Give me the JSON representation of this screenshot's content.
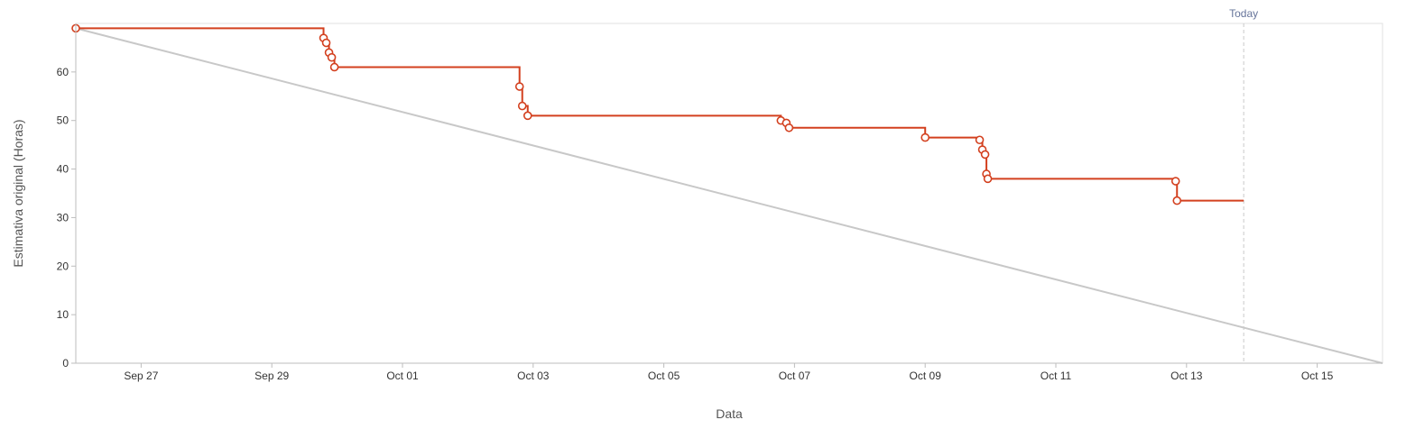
{
  "chart_data": {
    "type": "line",
    "xlabel": "Data",
    "ylabel": "Estimativa original (Horas)",
    "x_axis": {
      "type": "date",
      "range": [
        "2025-09-26",
        "2025-10-16"
      ],
      "ticks": [
        {
          "date": "2025-09-27",
          "label": "Sep 27"
        },
        {
          "date": "2025-09-29",
          "label": "Sep 29"
        },
        {
          "date": "2025-10-01",
          "label": "Oct 01"
        },
        {
          "date": "2025-10-03",
          "label": "Oct 03"
        },
        {
          "date": "2025-10-05",
          "label": "Oct 05"
        },
        {
          "date": "2025-10-07",
          "label": "Oct 07"
        },
        {
          "date": "2025-10-09",
          "label": "Oct 09"
        },
        {
          "date": "2025-10-11",
          "label": "Oct 11"
        },
        {
          "date": "2025-10-13",
          "label": "Oct 13"
        },
        {
          "date": "2025-10-15",
          "label": "Oct 15"
        }
      ]
    },
    "y_axis": {
      "range": [
        0,
        70
      ],
      "ticks": [
        0,
        10,
        20,
        30,
        40,
        50,
        60
      ]
    },
    "grid": false,
    "marker": {
      "date": "2025-10-13T21:00",
      "label": "Today"
    },
    "series": [
      {
        "role": "guideline",
        "color": "#c8c8c8",
        "points": [
          {
            "x": "2025-09-26T00:00",
            "y": 69
          },
          {
            "x": "2025-10-16T00:00",
            "y": 0
          }
        ]
      },
      {
        "role": "remaining",
        "color": "#d3401f",
        "line_end": {
          "x": "2025-10-13T21:00",
          "y": 33.5
        },
        "points": [
          {
            "x": "2025-09-26T00:00",
            "y": 69
          },
          {
            "x": "2025-09-29T19:00",
            "y": 67
          },
          {
            "x": "2025-09-29T20:00",
            "y": 66
          },
          {
            "x": "2025-09-29T21:00",
            "y": 64
          },
          {
            "x": "2025-09-29T22:00",
            "y": 63
          },
          {
            "x": "2025-09-29T23:00",
            "y": 61
          },
          {
            "x": "2025-10-02T19:00",
            "y": 57
          },
          {
            "x": "2025-10-02T20:00",
            "y": 53
          },
          {
            "x": "2025-10-02T22:00",
            "y": 51
          },
          {
            "x": "2025-10-06T19:00",
            "y": 50
          },
          {
            "x": "2025-10-06T21:00",
            "y": 49.5
          },
          {
            "x": "2025-10-06T22:00",
            "y": 48.5
          },
          {
            "x": "2025-10-09T00:00",
            "y": 46.5
          },
          {
            "x": "2025-10-09T20:00",
            "y": 46
          },
          {
            "x": "2025-10-09T21:00",
            "y": 44
          },
          {
            "x": "2025-10-09T22:00",
            "y": 43
          },
          {
            "x": "2025-10-09T22:30",
            "y": 39
          },
          {
            "x": "2025-10-09T23:00",
            "y": 38
          },
          {
            "x": "2025-10-12T20:00",
            "y": 37.5
          },
          {
            "x": "2025-10-12T20:30",
            "y": 33.5
          }
        ]
      }
    ]
  }
}
